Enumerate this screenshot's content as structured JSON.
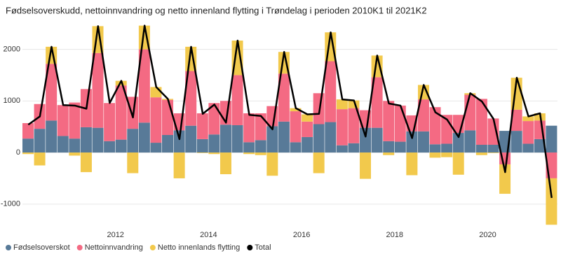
{
  "chart_data": {
    "type": "bar",
    "stacked": true,
    "title": "Fødselsoverskudd, nettoinnvandring og netto innenland flytting i Trøndelag i perioden 2010K1 til 2021K2",
    "categories": [
      null,
      null,
      null,
      null,
      null,
      null,
      null,
      null,
      "2012",
      null,
      null,
      null,
      null,
      null,
      null,
      null,
      "2014",
      null,
      null,
      null,
      null,
      null,
      null,
      null,
      "2016",
      null,
      null,
      null,
      null,
      null,
      null,
      null,
      "2018",
      null,
      null,
      null,
      null,
      null,
      null,
      null,
      "2020",
      null,
      null,
      null,
      null,
      null
    ],
    "series": [
      {
        "name": "Fødselsoverskot",
        "color": "#587a98",
        "type": "bar",
        "values": [
          270,
          460,
          620,
          320,
          270,
          490,
          480,
          220,
          250,
          460,
          580,
          190,
          340,
          430,
          520,
          260,
          350,
          540,
          530,
          200,
          240,
          510,
          600,
          200,
          300,
          550,
          590,
          140,
          180,
          480,
          480,
          220,
          210,
          410,
          410,
          160,
          170,
          380,
          430,
          150,
          150,
          420,
          420,
          170,
          260,
          520
        ]
      },
      {
        "name": "Nettoinnvandring",
        "color": "#f46a83",
        "type": "bar",
        "values": [
          300,
          480,
          1100,
          600,
          700,
          740,
          1450,
          740,
          1050,
          620,
          1420,
          880,
          680,
          330,
          1060,
          500,
          610,
          460,
          970,
          560,
          520,
          390,
          930,
          600,
          300,
          600,
          1180,
          700,
          680,
          340,
          980,
          780,
          700,
          310,
          620,
          720,
          560,
          350,
          690,
          890,
          510,
          -230,
          410,
          440,
          360,
          -500
        ]
      },
      {
        "name": "Netto innenlands flytting",
        "color": "#f2c94c",
        "type": "bar",
        "values": [
          -30,
          -250,
          330,
          0,
          -60,
          -380,
          520,
          0,
          90,
          -400,
          460,
          200,
          20,
          -500,
          470,
          -10,
          -30,
          -420,
          670,
          -30,
          -50,
          -450,
          420,
          60,
          140,
          -400,
          560,
          190,
          150,
          -510,
          420,
          -50,
          0,
          -440,
          280,
          -100,
          -90,
          -430,
          30,
          -50,
          -10,
          -570,
          620,
          90,
          140,
          -900
        ]
      },
      {
        "name": "Total",
        "color": "#000000",
        "type": "line",
        "values": [
          540,
          700,
          2050,
          920,
          910,
          850,
          2450,
          960,
          1390,
          680,
          2460,
          1270,
          1040,
          260,
          2050,
          750,
          930,
          580,
          2170,
          730,
          710,
          450,
          1950,
          860,
          740,
          750,
          2330,
          1030,
          1010,
          310,
          1880,
          950,
          910,
          280,
          1310,
          780,
          640,
          300,
          1150,
          990,
          650,
          -380,
          1450,
          700,
          760,
          -880
        ]
      }
    ],
    "ylim": [
      -1450,
      2550
    ],
    "yticks": [
      -1000,
      0,
      1000,
      2000
    ],
    "grid": true,
    "legend": "bottom-left"
  }
}
